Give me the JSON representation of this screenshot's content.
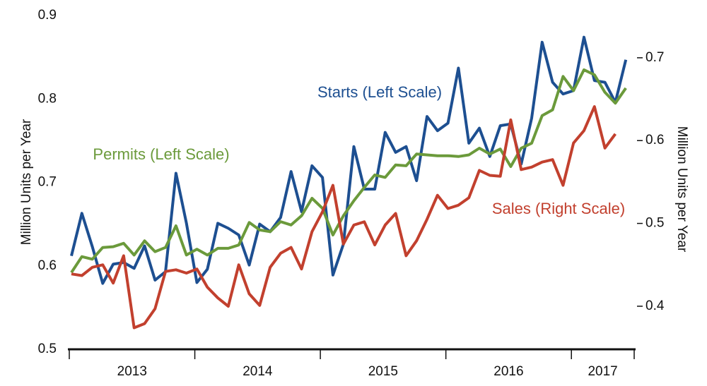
{
  "chart_data": {
    "type": "line",
    "y_label": "Million Units per Year",
    "y2_label": "Million Units per Year",
    "categories": [
      "2013",
      null,
      null,
      null,
      null,
      null,
      null,
      null,
      null,
      null,
      null,
      null,
      "2014",
      null,
      null,
      null,
      null,
      null,
      null,
      null,
      null,
      null,
      null,
      null,
      "2015",
      null,
      null,
      null,
      null,
      null,
      null,
      null,
      null,
      null,
      null,
      null,
      "2016",
      null,
      null,
      null,
      null,
      null,
      null,
      null,
      null,
      null,
      null,
      null,
      "2017",
      null,
      null,
      null,
      null,
      null
    ],
    "ylim": [
      0.5,
      0.9
    ],
    "yticks": [
      0.5,
      0.6,
      0.7,
      0.8,
      0.9
    ],
    "y2lim": [
      0.348,
      0.751
    ],
    "y2ticks": [
      0.4,
      0.5,
      0.6,
      0.7
    ],
    "grid": false,
    "series": [
      {
        "name": "Starts (Left Scale)",
        "color": "#1d4f91",
        "axis": "y",
        "values": [
          0.612,
          0.663,
          0.623,
          0.579,
          0.602,
          0.604,
          0.597,
          0.624,
          0.583,
          0.593,
          0.711,
          0.651,
          0.58,
          0.596,
          0.651,
          0.645,
          0.637,
          0.601,
          0.65,
          0.641,
          0.658,
          0.713,
          0.665,
          0.72,
          0.706,
          0.589,
          0.626,
          0.743,
          0.692,
          0.692,
          0.76,
          0.736,
          0.743,
          0.702,
          0.779,
          0.762,
          0.771,
          0.837,
          0.747,
          0.765,
          0.731,
          0.768,
          0.77,
          0.722,
          0.777,
          0.868,
          0.82,
          0.806,
          0.81,
          0.874,
          0.822,
          0.82,
          0.796,
          0.847
        ]
      },
      {
        "name": "Permits (Left Scale)",
        "color": "#6b9a3b",
        "axis": "y",
        "values": [
          0.592,
          0.611,
          0.608,
          0.622,
          0.623,
          0.627,
          0.613,
          0.63,
          0.617,
          0.622,
          0.648,
          0.613,
          0.62,
          0.613,
          0.621,
          0.621,
          0.625,
          0.652,
          0.643,
          0.641,
          0.653,
          0.649,
          0.66,
          0.681,
          0.669,
          0.637,
          0.66,
          0.678,
          0.694,
          0.709,
          0.706,
          0.721,
          0.72,
          0.734,
          0.733,
          0.732,
          0.732,
          0.731,
          0.733,
          0.741,
          0.734,
          0.74,
          0.719,
          0.741,
          0.747,
          0.78,
          0.787,
          0.827,
          0.81,
          0.835,
          0.829,
          0.808,
          0.795,
          0.813
        ]
      },
      {
        "name": "Sales (Right Scale)",
        "color": "#c2402e",
        "axis": "y2",
        "values": [
          0.439,
          0.437,
          0.447,
          0.45,
          0.428,
          0.461,
          0.374,
          0.379,
          0.397,
          0.442,
          0.444,
          0.44,
          0.445,
          0.423,
          0.41,
          0.4,
          0.45,
          0.415,
          0.401,
          0.447,
          0.464,
          0.471,
          0.445,
          0.49,
          0.514,
          0.546,
          0.475,
          0.498,
          0.502,
          0.474,
          0.498,
          0.512,
          0.461,
          0.479,
          0.505,
          0.534,
          0.518,
          0.522,
          0.531,
          0.564,
          0.558,
          0.557,
          0.625,
          0.565,
          0.568,
          0.574,
          0.577,
          0.546,
          0.597,
          0.612,
          0.641,
          0.591,
          0.608,
          null
        ]
      }
    ]
  }
}
